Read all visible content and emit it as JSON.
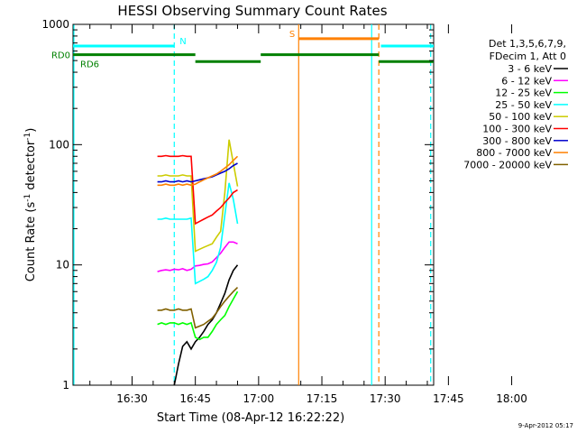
{
  "chart_data": {
    "type": "line",
    "title": "HESSI Observing Summary Count Rates",
    "xlabel": "Start Time (08-Apr-12 16:22:22)",
    "ylabel_main": "Count Rate (s",
    "ylabel_sup1": "-1",
    "ylabel_mid": " detector",
    "ylabel_sup2": "-1",
    "ylabel_end": ")",
    "yscale": "log",
    "xlim_minutes": [
      16.0,
      101.5
    ],
    "ylim": [
      1,
      1000
    ],
    "x_ticks": [
      {
        "label": "16:30",
        "min": 30
      },
      {
        "label": "16:45",
        "min": 45
      },
      {
        "label": "17:00",
        "min": 60
      },
      {
        "label": "17:15",
        "min": 75
      },
      {
        "label": "17:30",
        "min": 90
      },
      {
        "label": "17:45",
        "min": 105
      },
      {
        "label": "18:00",
        "min": 120
      }
    ],
    "y_ticks": [
      {
        "label": "1",
        "value": 1
      },
      {
        "label": "10",
        "value": 10
      },
      {
        "label": "100",
        "value": 100
      },
      {
        "label": "1000",
        "value": 1000
      }
    ],
    "legend_header": [
      "Det 1,3,5,6,7,9,",
      "FDecim 1, Att 0"
    ],
    "legend_position": "right",
    "series": [
      {
        "name": "3 - 6 keV",
        "color": "#000000",
        "x": [
          40,
          41,
          42,
          43,
          44,
          45,
          46,
          47,
          48,
          49,
          50,
          51,
          52,
          53,
          54,
          55
        ],
        "y": [
          1.0,
          1.5,
          2.1,
          2.3,
          2.0,
          2.3,
          2.5,
          2.8,
          3.2,
          3.5,
          4.0,
          4.8,
          5.8,
          7.5,
          9.0,
          10.0
        ]
      },
      {
        "name": "6 - 12 keV",
        "color": "#ff00ff",
        "x": [
          36,
          37,
          38,
          39,
          40,
          41,
          42,
          43,
          44,
          45,
          46,
          47,
          48,
          49,
          50,
          51,
          52,
          53,
          54,
          55
        ],
        "y": [
          8.8,
          9.0,
          9.1,
          9.0,
          9.2,
          9.1,
          9.3,
          9.0,
          9.2,
          9.8,
          9.9,
          10.1,
          10.2,
          10.6,
          11.5,
          12.5,
          14.0,
          15.5,
          15.5,
          15.0
        ]
      },
      {
        "name": "12 - 25 keV",
        "color": "#00ff00",
        "x": [
          36,
          37,
          38,
          39,
          40,
          41,
          42,
          43,
          44,
          45,
          46,
          47,
          48,
          49,
          50,
          51,
          52,
          53,
          54,
          55
        ],
        "y": [
          3.2,
          3.3,
          3.2,
          3.3,
          3.3,
          3.2,
          3.3,
          3.2,
          3.3,
          2.5,
          2.4,
          2.5,
          2.5,
          2.8,
          3.2,
          3.5,
          3.8,
          4.5,
          5.2,
          6.0
        ]
      },
      {
        "name": "25 - 50 keV",
        "color": "#00ffff",
        "x": [
          36,
          37,
          38,
          39,
          40,
          41,
          42,
          43,
          44,
          45,
          46,
          47,
          48,
          49,
          50,
          51,
          52,
          53,
          54,
          55
        ],
        "y": [
          24,
          24,
          24.5,
          24,
          24,
          24,
          24,
          24,
          24.5,
          7.0,
          7.3,
          7.6,
          8.0,
          9.0,
          10.5,
          14.0,
          26.0,
          48.0,
          35.0,
          22.0
        ]
      },
      {
        "name": "50 - 100 keV",
        "color": "#cccc00",
        "x": [
          36,
          37,
          38,
          39,
          40,
          41,
          42,
          43,
          44,
          45,
          46,
          47,
          48,
          49,
          50,
          51,
          52,
          53,
          54,
          55
        ],
        "y": [
          55,
          55,
          56,
          55,
          55,
          55,
          56,
          55,
          55,
          13.0,
          13.5,
          14.0,
          14.5,
          15.0,
          17.0,
          19.0,
          40.0,
          110.0,
          70.0,
          45.0
        ]
      },
      {
        "name": "100 - 300 keV",
        "color": "#ff0000",
        "x": [
          36,
          37,
          38,
          39,
          40,
          41,
          42,
          43,
          44,
          45,
          46,
          47,
          48,
          49,
          50,
          51,
          52,
          53,
          54,
          55
        ],
        "y": [
          80,
          80,
          81,
          80,
          80,
          80,
          81,
          80,
          80,
          22,
          23,
          24,
          25,
          26,
          28,
          30,
          33,
          36,
          40,
          42
        ]
      },
      {
        "name": "300 - 800 keV",
        "color": "#0000cc",
        "x": [
          36,
          37,
          38,
          39,
          40,
          41,
          42,
          43,
          44,
          45,
          46,
          47,
          48,
          49,
          50,
          51,
          52,
          53,
          54,
          55
        ],
        "y": [
          49,
          49,
          50,
          49,
          49,
          50,
          49,
          50,
          49,
          50,
          51,
          52,
          53,
          54,
          56,
          58,
          60,
          63,
          67,
          70
        ]
      },
      {
        "name": "800 - 7000 keV",
        "color": "#ff8000",
        "x": [
          36,
          37,
          38,
          39,
          40,
          41,
          42,
          43,
          44,
          45,
          46,
          47,
          48,
          49,
          50,
          51,
          52,
          53,
          54,
          55
        ],
        "y": [
          46,
          46,
          47,
          46,
          46,
          47,
          46,
          47,
          46,
          47,
          49,
          51,
          53,
          55,
          57,
          60,
          64,
          68,
          74,
          80
        ]
      },
      {
        "name": "7000 - 20000 keV",
        "color": "#806000",
        "x": [
          36,
          37,
          38,
          39,
          40,
          41,
          42,
          43,
          44,
          45,
          46,
          47,
          48,
          49,
          50,
          51,
          52,
          53,
          54,
          55
        ],
        "y": [
          4.2,
          4.2,
          4.3,
          4.2,
          4.2,
          4.3,
          4.2,
          4.2,
          4.3,
          3.0,
          3.1,
          3.2,
          3.4,
          3.6,
          4.0,
          4.5,
          5.0,
          5.5,
          6.0,
          6.5
        ]
      }
    ],
    "flag_segments": [
      {
        "label": "N",
        "color": "#00ffff",
        "y": 660,
        "segments": [
          [
            16,
            40
          ],
          [
            89,
            101.5
          ]
        ]
      },
      {
        "label": "S",
        "color": "#ff8000",
        "y": 760,
        "segments": [
          [
            69.5,
            88.5
          ]
        ]
      },
      {
        "label": "RD0",
        "color": "#008000",
        "y": 560,
        "segments": [
          [
            16,
            45
          ],
          [
            60.5,
            88.5
          ]
        ]
      },
      {
        "label": "RD6",
        "color": "#008000",
        "y": 490,
        "segments": [
          [
            45,
            60.5
          ],
          [
            88.5,
            101.5
          ]
        ]
      }
    ],
    "vertical_lines": [
      {
        "min": 16.2,
        "color": "#00ffff",
        "style": "solid"
      },
      {
        "min": 40.0,
        "color": "#00ffff",
        "style": "dashed"
      },
      {
        "min": 69.5,
        "color": "#ff8000",
        "style": "solid"
      },
      {
        "min": 86.8,
        "color": "#00ffff",
        "style": "solid"
      },
      {
        "min": 88.5,
        "color": "#ff8000",
        "style": "dashed"
      },
      {
        "min": 100.8,
        "color": "#00ffff",
        "style": "dashed"
      }
    ],
    "footer_stamp": "9-Apr-2012 05:17",
    "grid": false
  }
}
